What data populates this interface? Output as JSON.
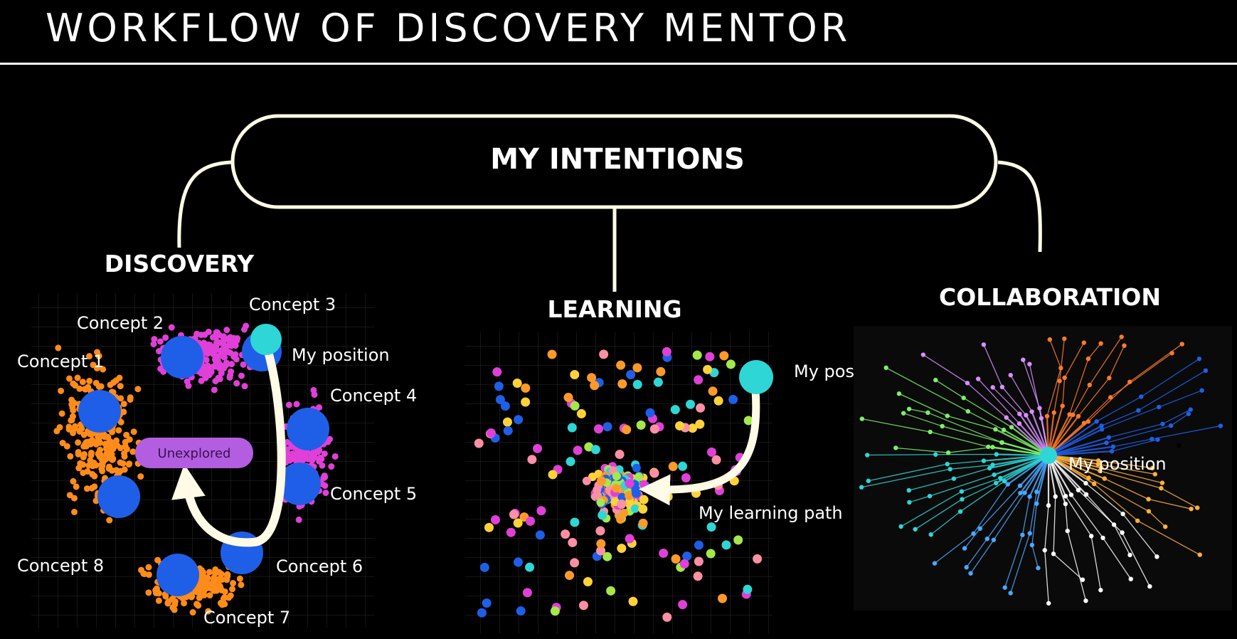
{
  "title": "WORKFLOW OF DISCOVERY MENTOR",
  "center_box": "MY INTENTIONS",
  "sections": {
    "discovery": "DISCOVERY",
    "learning": "LEARNING",
    "collaboration": "COLLABORATION"
  },
  "discovery_panel": {
    "concepts": [
      "Concept 1",
      "Concept 2",
      "Concept 3",
      "Concept 4",
      "Concept 5",
      "Concept 6",
      "Concept 7",
      "Concept 8"
    ],
    "my_position": "My position",
    "unexplored": "Unexplored"
  },
  "learning_panel": {
    "my_position": "My position",
    "path_label": "My learning path"
  },
  "collaboration_panel": {
    "my_position": "My position"
  },
  "colors": {
    "background": "#000000",
    "line": "#fffbe6",
    "orange_cluster": "#ff8c1a",
    "magenta_cluster": "#e040d8",
    "concept_node": "#1f5fe8",
    "position_node": "#2fd6d6",
    "unexplored_pill": "#b35ee0"
  }
}
